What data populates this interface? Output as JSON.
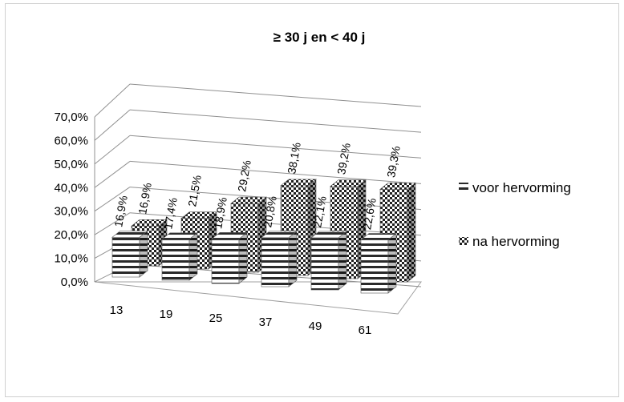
{
  "chart_data": {
    "type": "bar",
    "title": "≥ 30 j en < 40 j",
    "categories": [
      "13",
      "19",
      "25",
      "37",
      "49",
      "61"
    ],
    "series": [
      {
        "name": "voor hervorming",
        "values": [
          16.9,
          17.4,
          18.9,
          20.8,
          22.1,
          22.6
        ],
        "labels": [
          "16,9%",
          "17,4%",
          "18,9%",
          "20,8%",
          "22,1%",
          "22,6%"
        ],
        "pattern": "horizontal-stripes"
      },
      {
        "name": "na hervorming",
        "values": [
          16.9,
          21.5,
          29.2,
          38.1,
          39.2,
          39.3
        ],
        "labels": [
          "16,9%",
          "21,5%",
          "29,2%",
          "38,1%",
          "39,2%",
          "39,3%"
        ],
        "pattern": "checkerboard"
      }
    ],
    "y_ticks": [
      "0,0%",
      "10,0%",
      "20,0%",
      "30,0%",
      "40,0%",
      "50,0%",
      "60,0%",
      "70,0%"
    ],
    "ylim": [
      0,
      70
    ],
    "grid": true,
    "legend_position": "right",
    "style": "3d-clustered-column",
    "colors": {
      "gridline": "#909090",
      "bar_dark": "#2a2a2a",
      "bar_light": "#ffffff"
    }
  }
}
